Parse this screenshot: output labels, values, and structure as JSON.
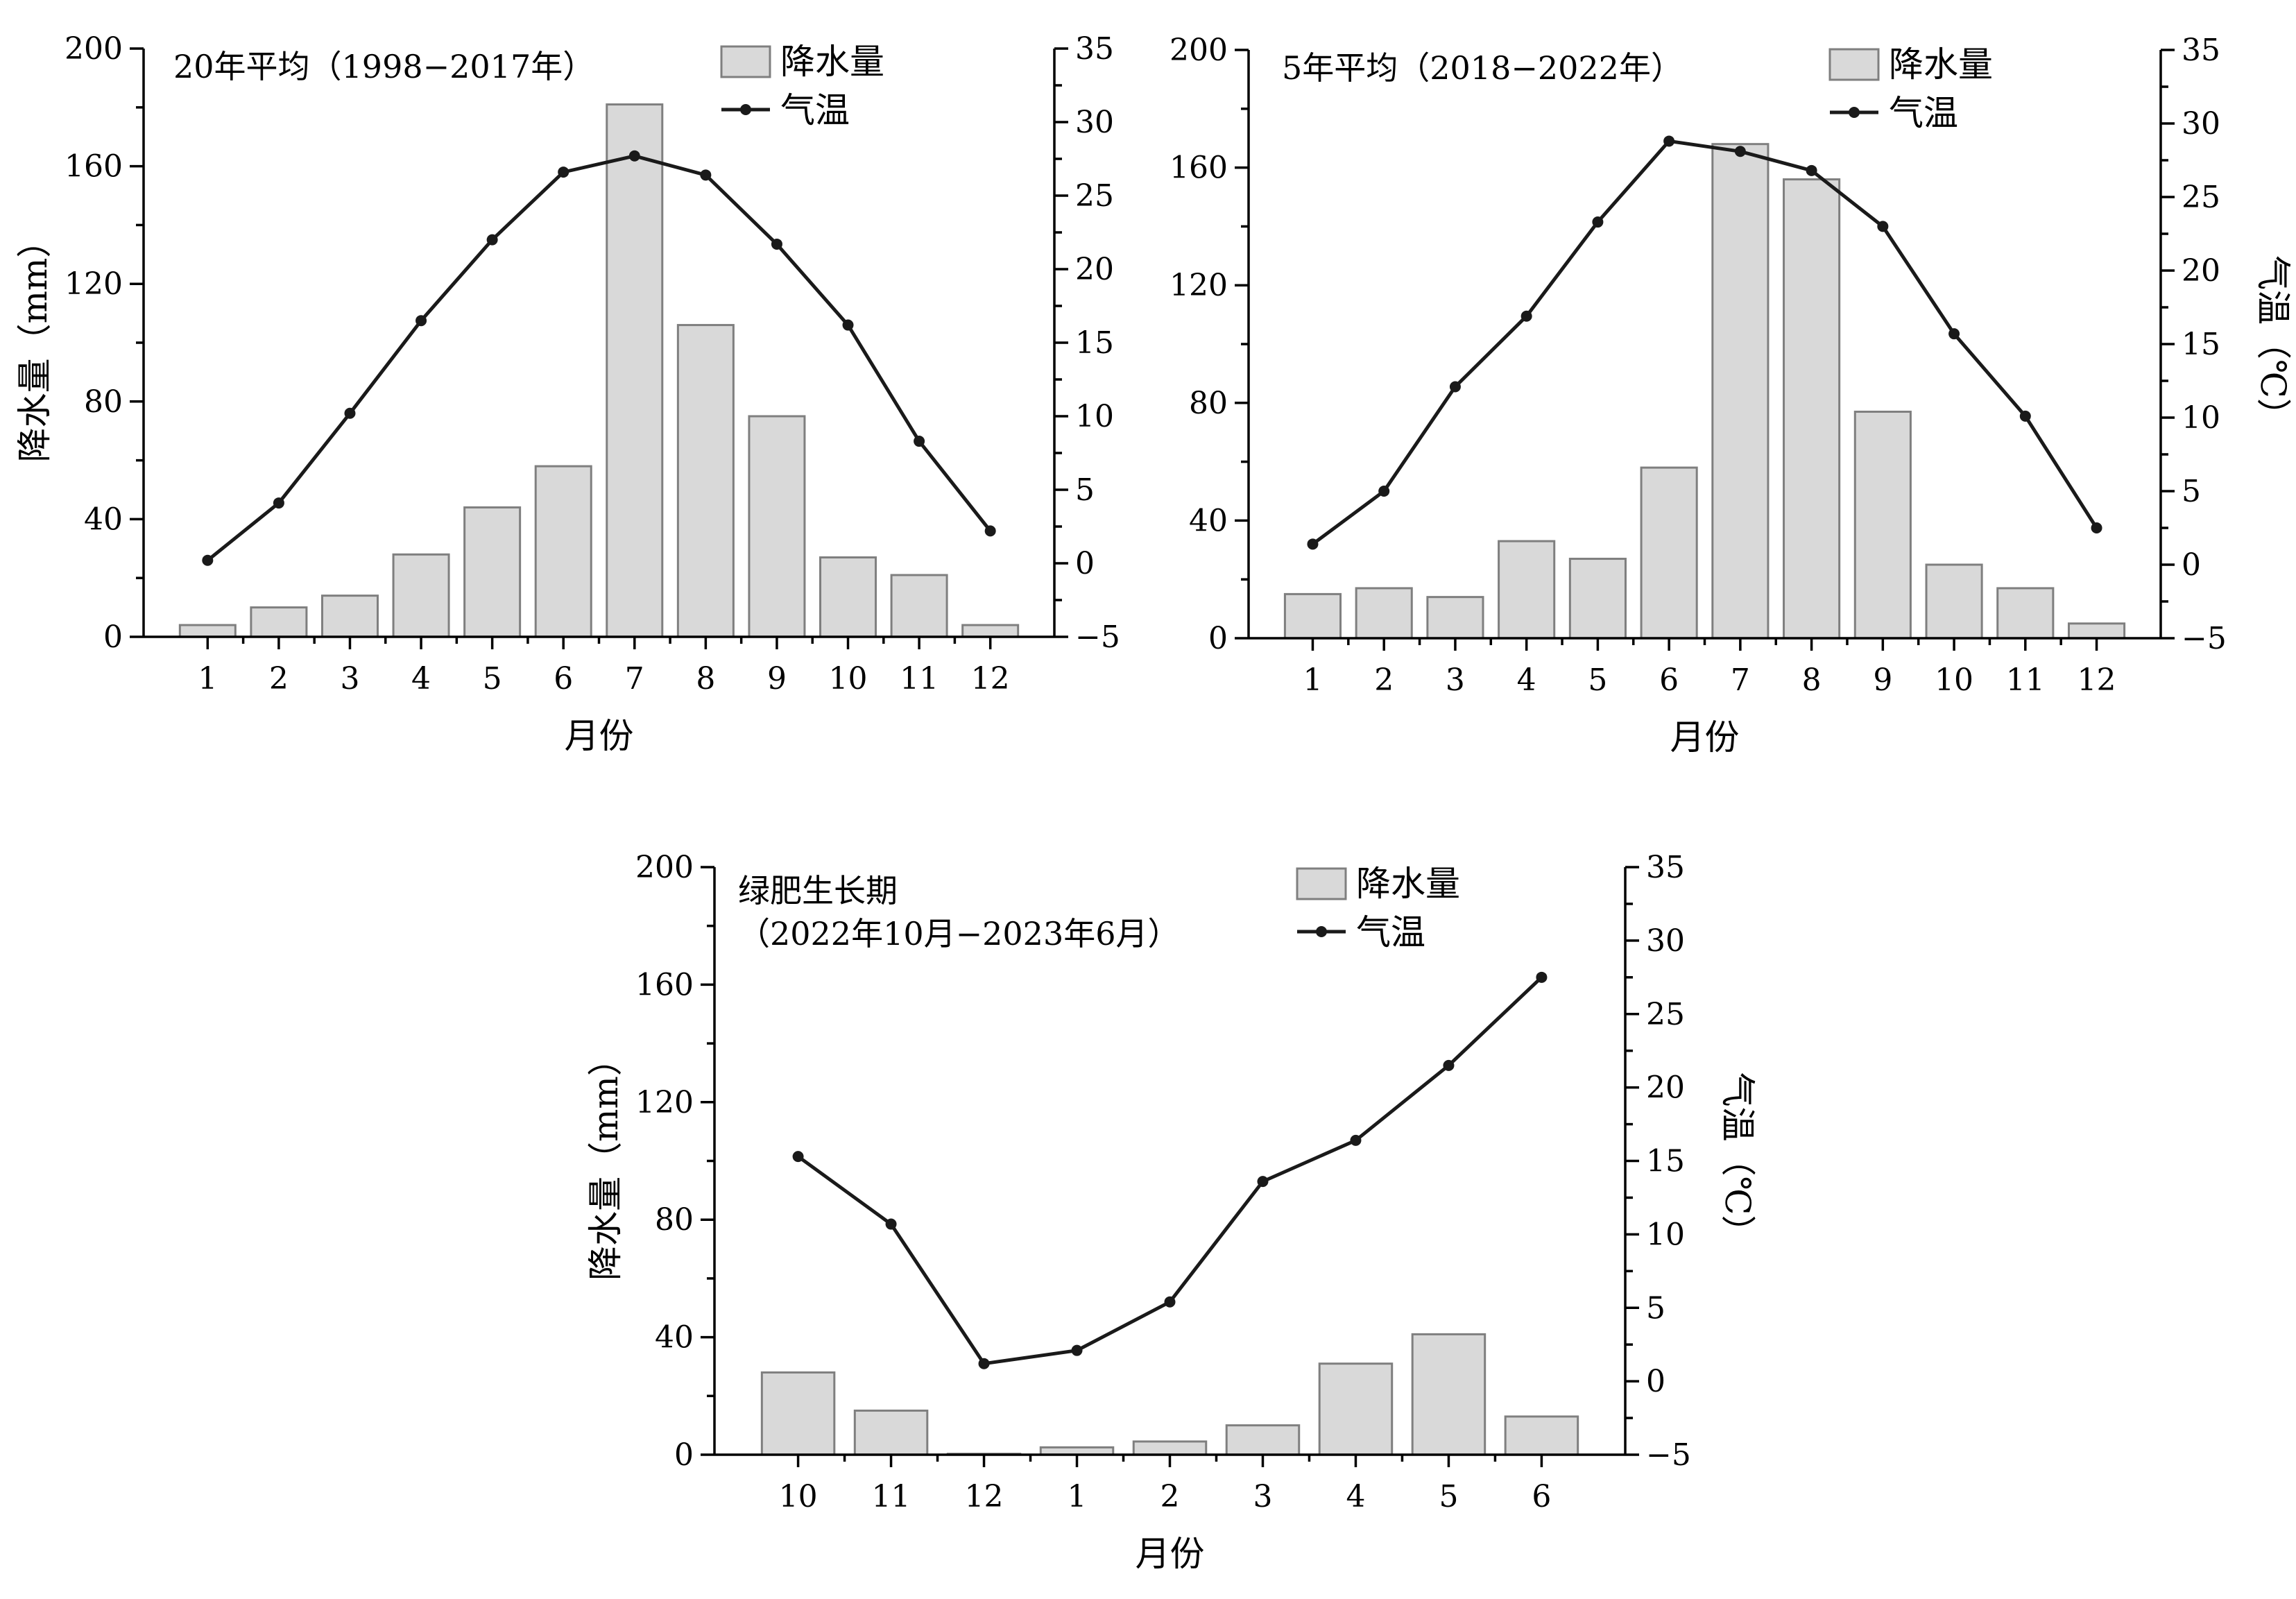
{
  "legend": {
    "precip_label": "降水量",
    "temp_label": "气温"
  },
  "colors": {
    "bar_fill": "#d9d9d9",
    "bar_stroke": "#7f7f7f",
    "line": "#1a1a1a"
  },
  "chart_data": [
    {
      "type": "bar+line",
      "title": "20年平均（1998−2017年）",
      "xlabel": "月份",
      "ylabel": "降水量（mm）",
      "ylabel_right": "",
      "categories": [
        "1",
        "2",
        "3",
        "4",
        "5",
        "6",
        "7",
        "8",
        "9",
        "10",
        "11",
        "12"
      ],
      "ylim": [
        0,
        200
      ],
      "y_ticks": [
        0,
        40,
        80,
        120,
        160,
        200
      ],
      "y2lim": [
        -5,
        35
      ],
      "y2_ticks": [
        -5,
        0,
        5,
        10,
        15,
        20,
        25,
        30,
        35
      ],
      "series": [
        {
          "name": "降水量",
          "kind": "bar",
          "axis": "left",
          "values": [
            4,
            10,
            14,
            28,
            44,
            58,
            181,
            106,
            75,
            27,
            21,
            4
          ]
        },
        {
          "name": "气温",
          "kind": "line",
          "axis": "right",
          "values": [
            0.2,
            4.1,
            10.2,
            16.5,
            22.0,
            26.6,
            27.7,
            26.4,
            21.7,
            16.2,
            8.3,
            2.2
          ]
        }
      ],
      "legend_position": "top-right",
      "grid": false
    },
    {
      "type": "bar+line",
      "title": "5年平均（2018−2022年）",
      "xlabel": "月份",
      "ylabel": "",
      "ylabel_right": "气温（℃）",
      "categories": [
        "1",
        "2",
        "3",
        "4",
        "5",
        "6",
        "7",
        "8",
        "9",
        "10",
        "11",
        "12"
      ],
      "ylim": [
        0,
        200
      ],
      "y_ticks": [
        0,
        40,
        80,
        120,
        160,
        200
      ],
      "y2lim": [
        -5,
        35
      ],
      "y2_ticks": [
        -5,
        0,
        5,
        10,
        15,
        20,
        25,
        30,
        35
      ],
      "series": [
        {
          "name": "降水量",
          "kind": "bar",
          "axis": "left",
          "values": [
            15,
            17,
            14,
            33,
            27,
            58,
            168,
            156,
            77,
            25,
            17,
            5
          ]
        },
        {
          "name": "气温",
          "kind": "line",
          "axis": "right",
          "values": [
            1.4,
            5.0,
            12.1,
            16.9,
            23.3,
            28.8,
            28.1,
            26.8,
            23.0,
            15.7,
            10.1,
            2.5
          ]
        }
      ],
      "legend_position": "top-right",
      "grid": false
    },
    {
      "type": "bar+line",
      "title": "绿肥生长期",
      "subtitle": "（2022年10月−2023年6月）",
      "xlabel": "月份",
      "ylabel": "降水量（mm）",
      "ylabel_right": "气温（℃）",
      "categories": [
        "10",
        "11",
        "12",
        "1",
        "2",
        "3",
        "4",
        "5",
        "6"
      ],
      "ylim": [
        0,
        200
      ],
      "y_ticks": [
        0,
        40,
        80,
        120,
        160,
        200
      ],
      "y2lim": [
        -5,
        35
      ],
      "y2_ticks": [
        -5,
        0,
        5,
        10,
        15,
        20,
        25,
        30,
        35
      ],
      "series": [
        {
          "name": "降水量",
          "kind": "bar",
          "axis": "left",
          "values": [
            28,
            15,
            0.3,
            2.5,
            4.5,
            10,
            31,
            41,
            13
          ]
        },
        {
          "name": "气温",
          "kind": "line",
          "axis": "right",
          "values": [
            15.3,
            10.7,
            1.2,
            2.1,
            5.4,
            13.6,
            16.4,
            21.5,
            27.5
          ]
        }
      ],
      "legend_position": "top-right",
      "grid": false
    }
  ]
}
